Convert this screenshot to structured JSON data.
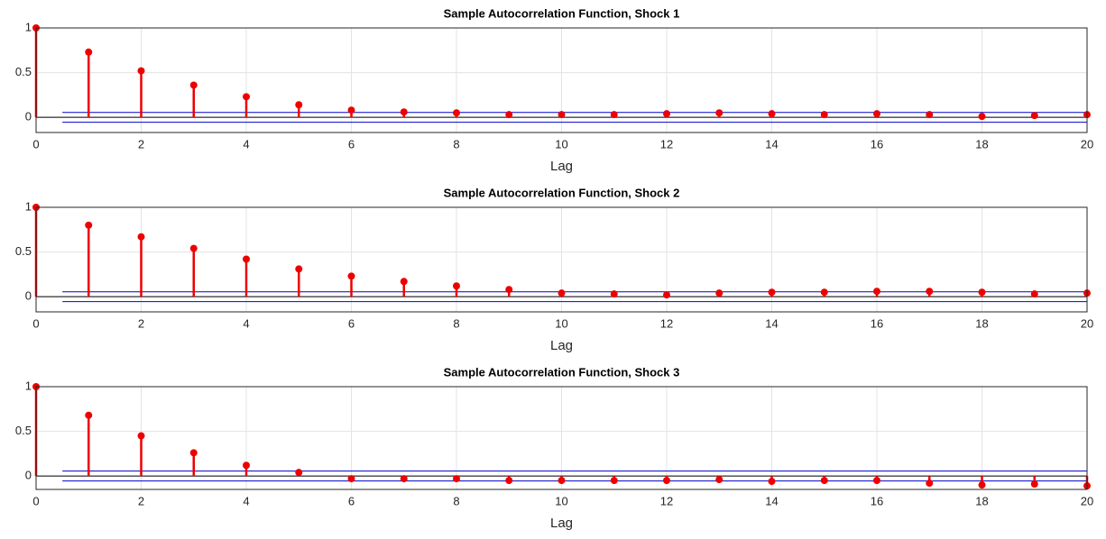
{
  "chart_data": [
    {
      "type": "stem",
      "title": "Sample Autocorrelation Function, Shock 1",
      "xlabel": "Lag",
      "x": [
        0,
        1,
        2,
        3,
        4,
        5,
        6,
        7,
        8,
        9,
        10,
        11,
        12,
        13,
        14,
        15,
        16,
        17,
        18,
        19,
        20
      ],
      "values": [
        1,
        0.73,
        0.52,
        0.36,
        0.23,
        0.14,
        0.08,
        0.06,
        0.05,
        0.03,
        0.03,
        0.03,
        0.04,
        0.05,
        0.04,
        0.03,
        0.04,
        0.03,
        0.01,
        0.02,
        0.03
      ],
      "color": "#ee0000",
      "bounds_color": "#0000cc",
      "confidence_bounds": [
        0.055,
        -0.055
      ],
      "bounds_xlim": [
        0.5,
        20
      ],
      "xlim": [
        0,
        20
      ],
      "ylim": [
        -0.17,
        1
      ],
      "xticks": [
        0,
        2,
        4,
        6,
        8,
        10,
        12,
        14,
        16,
        18,
        20
      ],
      "yticks": [
        0,
        0.5,
        1
      ],
      "grid": true
    },
    {
      "type": "stem",
      "title": "Sample Autocorrelation Function, Shock 2",
      "xlabel": "Lag",
      "x": [
        0,
        1,
        2,
        3,
        4,
        5,
        6,
        7,
        8,
        9,
        10,
        11,
        12,
        13,
        14,
        15,
        16,
        17,
        18,
        19,
        20
      ],
      "values": [
        1,
        0.8,
        0.67,
        0.54,
        0.42,
        0.31,
        0.23,
        0.17,
        0.12,
        0.08,
        0.04,
        0.03,
        0.02,
        0.04,
        0.05,
        0.05,
        0.06,
        0.06,
        0.05,
        0.03,
        0.04
      ],
      "color": "#ee0000",
      "bounds_color": "#0000cc",
      "confidence_bounds": [
        0.055,
        -0.055
      ],
      "bounds_xlim": [
        0.5,
        20
      ],
      "xlim": [
        0,
        20
      ],
      "ylim": [
        -0.17,
        1
      ],
      "xticks": [
        0,
        2,
        4,
        6,
        8,
        10,
        12,
        14,
        16,
        18,
        20
      ],
      "yticks": [
        0,
        0.5,
        1
      ],
      "grid": true
    },
    {
      "type": "stem",
      "title": "Sample Autocorrelation Function, Shock 3",
      "xlabel": "Lag",
      "x": [
        0,
        1,
        2,
        3,
        4,
        5,
        6,
        7,
        8,
        9,
        10,
        11,
        12,
        13,
        14,
        15,
        16,
        17,
        18,
        19,
        20
      ],
      "values": [
        1,
        0.68,
        0.45,
        0.26,
        0.12,
        0.04,
        -0.03,
        -0.03,
        -0.03,
        -0.05,
        -0.05,
        -0.05,
        -0.05,
        -0.04,
        -0.06,
        -0.05,
        -0.05,
        -0.08,
        -0.1,
        -0.09,
        -0.11
      ],
      "color": "#ee0000",
      "bounds_color": "#0000cc",
      "confidence_bounds": [
        0.055,
        -0.055
      ],
      "bounds_xlim": [
        0.5,
        20
      ],
      "xlim": [
        0,
        20
      ],
      "ylim": [
        -0.15,
        1
      ],
      "xticks": [
        0,
        2,
        4,
        6,
        8,
        10,
        12,
        14,
        16,
        18,
        20
      ],
      "yticks": [
        0,
        0.5,
        1
      ],
      "grid": true
    }
  ]
}
